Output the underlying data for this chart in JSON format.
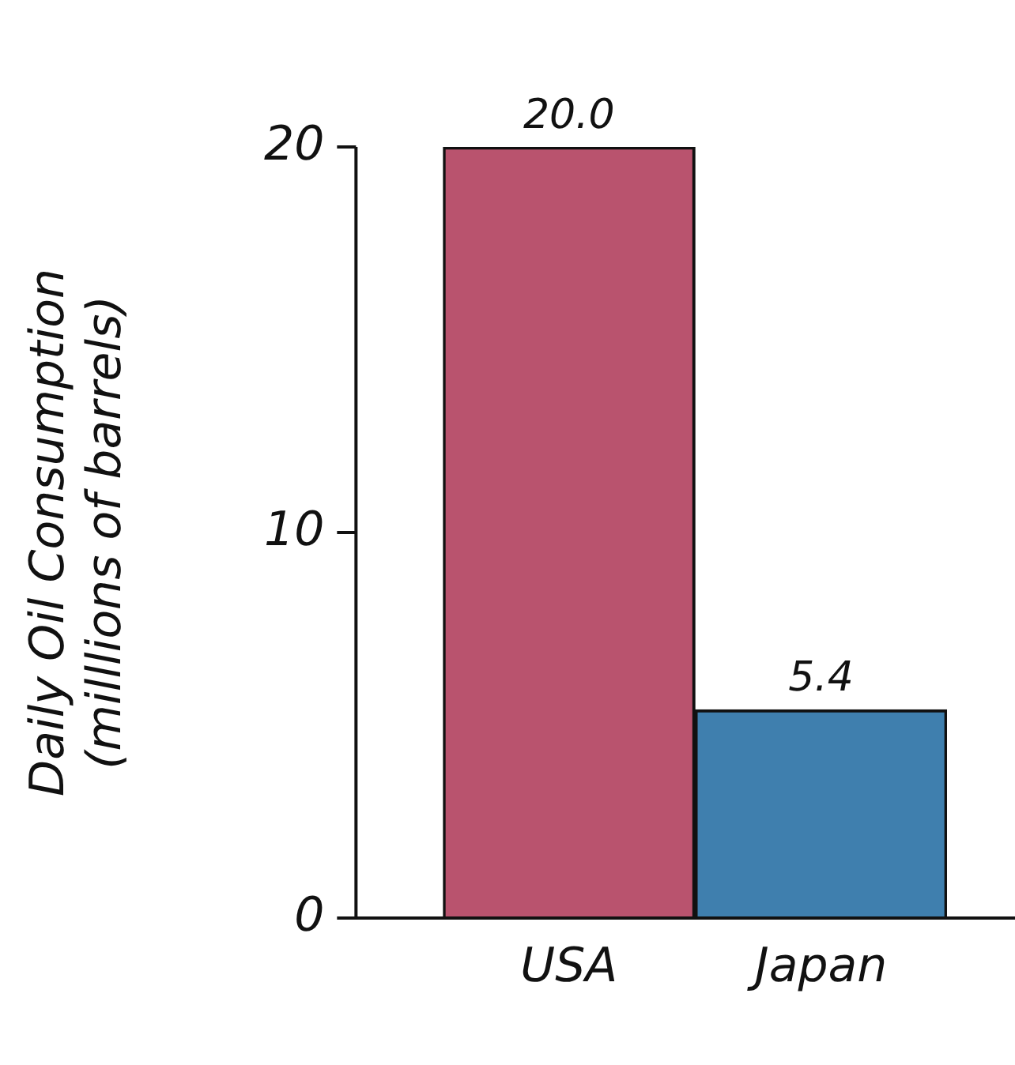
{
  "chart_data": {
    "type": "bar",
    "ylabel": "Daily Oil Consumption\n(milllions of barrels)",
    "categories": [
      "USA",
      "Japan"
    ],
    "values": [
      20,
      5.4
    ],
    "colors": [
      "#b9536e",
      "#3f7fae"
    ],
    "value_labels": [
      "20.0",
      "5.4"
    ],
    "ylim": [
      0,
      20
    ],
    "yticks": [
      0,
      10,
      20
    ],
    "grid": false,
    "legend": false
  }
}
